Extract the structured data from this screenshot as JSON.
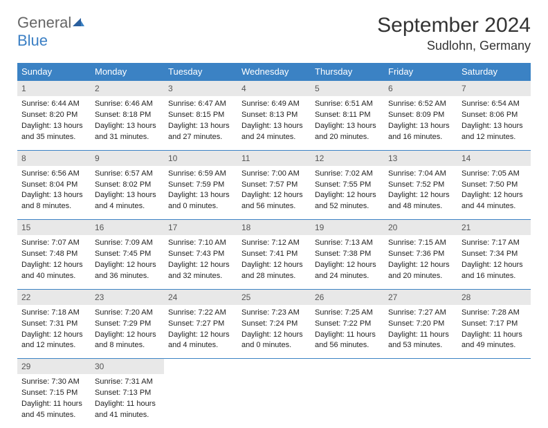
{
  "logo": {
    "word1": "General",
    "word2": "Blue"
  },
  "title": "September 2024",
  "location": "Sudlohn, Germany",
  "colors": {
    "header_bg": "#3b82c4",
    "header_text": "#ffffff",
    "daynum_bg": "#e8e8e8",
    "row_border": "#3b82c4",
    "logo_gray": "#666666",
    "logo_blue": "#3b7fc4"
  },
  "weekdays": [
    "Sunday",
    "Monday",
    "Tuesday",
    "Wednesday",
    "Thursday",
    "Friday",
    "Saturday"
  ],
  "weeks": [
    [
      {
        "n": "1",
        "sr": "Sunrise: 6:44 AM",
        "ss": "Sunset: 8:20 PM",
        "d1": "Daylight: 13 hours",
        "d2": "and 35 minutes."
      },
      {
        "n": "2",
        "sr": "Sunrise: 6:46 AM",
        "ss": "Sunset: 8:18 PM",
        "d1": "Daylight: 13 hours",
        "d2": "and 31 minutes."
      },
      {
        "n": "3",
        "sr": "Sunrise: 6:47 AM",
        "ss": "Sunset: 8:15 PM",
        "d1": "Daylight: 13 hours",
        "d2": "and 27 minutes."
      },
      {
        "n": "4",
        "sr": "Sunrise: 6:49 AM",
        "ss": "Sunset: 8:13 PM",
        "d1": "Daylight: 13 hours",
        "d2": "and 24 minutes."
      },
      {
        "n": "5",
        "sr": "Sunrise: 6:51 AM",
        "ss": "Sunset: 8:11 PM",
        "d1": "Daylight: 13 hours",
        "d2": "and 20 minutes."
      },
      {
        "n": "6",
        "sr": "Sunrise: 6:52 AM",
        "ss": "Sunset: 8:09 PM",
        "d1": "Daylight: 13 hours",
        "d2": "and 16 minutes."
      },
      {
        "n": "7",
        "sr": "Sunrise: 6:54 AM",
        "ss": "Sunset: 8:06 PM",
        "d1": "Daylight: 13 hours",
        "d2": "and 12 minutes."
      }
    ],
    [
      {
        "n": "8",
        "sr": "Sunrise: 6:56 AM",
        "ss": "Sunset: 8:04 PM",
        "d1": "Daylight: 13 hours",
        "d2": "and 8 minutes."
      },
      {
        "n": "9",
        "sr": "Sunrise: 6:57 AM",
        "ss": "Sunset: 8:02 PM",
        "d1": "Daylight: 13 hours",
        "d2": "and 4 minutes."
      },
      {
        "n": "10",
        "sr": "Sunrise: 6:59 AM",
        "ss": "Sunset: 7:59 PM",
        "d1": "Daylight: 13 hours",
        "d2": "and 0 minutes."
      },
      {
        "n": "11",
        "sr": "Sunrise: 7:00 AM",
        "ss": "Sunset: 7:57 PM",
        "d1": "Daylight: 12 hours",
        "d2": "and 56 minutes."
      },
      {
        "n": "12",
        "sr": "Sunrise: 7:02 AM",
        "ss": "Sunset: 7:55 PM",
        "d1": "Daylight: 12 hours",
        "d2": "and 52 minutes."
      },
      {
        "n": "13",
        "sr": "Sunrise: 7:04 AM",
        "ss": "Sunset: 7:52 PM",
        "d1": "Daylight: 12 hours",
        "d2": "and 48 minutes."
      },
      {
        "n": "14",
        "sr": "Sunrise: 7:05 AM",
        "ss": "Sunset: 7:50 PM",
        "d1": "Daylight: 12 hours",
        "d2": "and 44 minutes."
      }
    ],
    [
      {
        "n": "15",
        "sr": "Sunrise: 7:07 AM",
        "ss": "Sunset: 7:48 PM",
        "d1": "Daylight: 12 hours",
        "d2": "and 40 minutes."
      },
      {
        "n": "16",
        "sr": "Sunrise: 7:09 AM",
        "ss": "Sunset: 7:45 PM",
        "d1": "Daylight: 12 hours",
        "d2": "and 36 minutes."
      },
      {
        "n": "17",
        "sr": "Sunrise: 7:10 AM",
        "ss": "Sunset: 7:43 PM",
        "d1": "Daylight: 12 hours",
        "d2": "and 32 minutes."
      },
      {
        "n": "18",
        "sr": "Sunrise: 7:12 AM",
        "ss": "Sunset: 7:41 PM",
        "d1": "Daylight: 12 hours",
        "d2": "and 28 minutes."
      },
      {
        "n": "19",
        "sr": "Sunrise: 7:13 AM",
        "ss": "Sunset: 7:38 PM",
        "d1": "Daylight: 12 hours",
        "d2": "and 24 minutes."
      },
      {
        "n": "20",
        "sr": "Sunrise: 7:15 AM",
        "ss": "Sunset: 7:36 PM",
        "d1": "Daylight: 12 hours",
        "d2": "and 20 minutes."
      },
      {
        "n": "21",
        "sr": "Sunrise: 7:17 AM",
        "ss": "Sunset: 7:34 PM",
        "d1": "Daylight: 12 hours",
        "d2": "and 16 minutes."
      }
    ],
    [
      {
        "n": "22",
        "sr": "Sunrise: 7:18 AM",
        "ss": "Sunset: 7:31 PM",
        "d1": "Daylight: 12 hours",
        "d2": "and 12 minutes."
      },
      {
        "n": "23",
        "sr": "Sunrise: 7:20 AM",
        "ss": "Sunset: 7:29 PM",
        "d1": "Daylight: 12 hours",
        "d2": "and 8 minutes."
      },
      {
        "n": "24",
        "sr": "Sunrise: 7:22 AM",
        "ss": "Sunset: 7:27 PM",
        "d1": "Daylight: 12 hours",
        "d2": "and 4 minutes."
      },
      {
        "n": "25",
        "sr": "Sunrise: 7:23 AM",
        "ss": "Sunset: 7:24 PM",
        "d1": "Daylight: 12 hours",
        "d2": "and 0 minutes."
      },
      {
        "n": "26",
        "sr": "Sunrise: 7:25 AM",
        "ss": "Sunset: 7:22 PM",
        "d1": "Daylight: 11 hours",
        "d2": "and 56 minutes."
      },
      {
        "n": "27",
        "sr": "Sunrise: 7:27 AM",
        "ss": "Sunset: 7:20 PM",
        "d1": "Daylight: 11 hours",
        "d2": "and 53 minutes."
      },
      {
        "n": "28",
        "sr": "Sunrise: 7:28 AM",
        "ss": "Sunset: 7:17 PM",
        "d1": "Daylight: 11 hours",
        "d2": "and 49 minutes."
      }
    ],
    [
      {
        "n": "29",
        "sr": "Sunrise: 7:30 AM",
        "ss": "Sunset: 7:15 PM",
        "d1": "Daylight: 11 hours",
        "d2": "and 45 minutes."
      },
      {
        "n": "30",
        "sr": "Sunrise: 7:31 AM",
        "ss": "Sunset: 7:13 PM",
        "d1": "Daylight: 11 hours",
        "d2": "and 41 minutes."
      },
      {
        "empty": true
      },
      {
        "empty": true
      },
      {
        "empty": true
      },
      {
        "empty": true
      },
      {
        "empty": true
      }
    ]
  ]
}
